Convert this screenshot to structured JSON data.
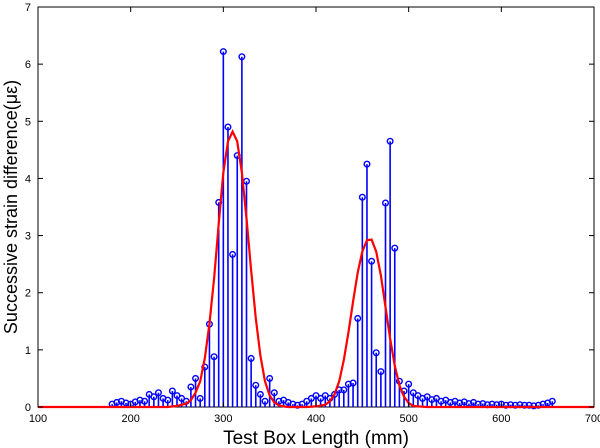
{
  "chart_data": {
    "type": "stem",
    "title": "",
    "xlabel": "Test Box Length (mm)",
    "ylabel": "Successive strain difference(με)",
    "xlim": [
      100,
      700
    ],
    "ylim": [
      0,
      7
    ],
    "xticks": [
      "100",
      "200",
      "300",
      "400",
      "500",
      "600",
      "700"
    ],
    "yticks": [
      "0",
      "1",
      "2",
      "3",
      "4",
      "5",
      "6",
      "7"
    ],
    "grid": false,
    "legend": "none",
    "series": [
      {
        "kind": "stem",
        "color": "#0000ff",
        "x": [
          180,
          185,
          190,
          195,
          200,
          205,
          210,
          215,
          220,
          225,
          230,
          235,
          240,
          245,
          250,
          255,
          260,
          265,
          270,
          275,
          280,
          285,
          290,
          295,
          300,
          305,
          310,
          315,
          320,
          325,
          330,
          335,
          340,
          345,
          350,
          355,
          360,
          365,
          370,
          375,
          380,
          385,
          390,
          395,
          400,
          405,
          410,
          415,
          420,
          425,
          430,
          435,
          440,
          445,
          450,
          455,
          460,
          465,
          470,
          475,
          480,
          485,
          490,
          495,
          500,
          505,
          510,
          515,
          520,
          525,
          530,
          535,
          540,
          545,
          550,
          555,
          560,
          565,
          570,
          575,
          580,
          585,
          590,
          595,
          600,
          605,
          610,
          615,
          620,
          625,
          630,
          635,
          640,
          645,
          650,
          655
        ],
        "y": [
          0.05,
          0.08,
          0.1,
          0.07,
          0.05,
          0.09,
          0.12,
          0.1,
          0.22,
          0.18,
          0.25,
          0.15,
          0.12,
          0.28,
          0.2,
          0.15,
          0.1,
          0.35,
          0.5,
          0.15,
          0.7,
          1.45,
          0.88,
          3.58,
          6.22,
          4.9,
          2.67,
          4.4,
          6.13,
          3.95,
          0.85,
          0.38,
          0.22,
          0.1,
          0.5,
          0.25,
          0.1,
          0.12,
          0.08,
          0.05,
          0.03,
          0.05,
          0.1,
          0.15,
          0.2,
          0.15,
          0.2,
          0.15,
          0.22,
          0.3,
          0.3,
          0.4,
          0.42,
          1.55,
          3.67,
          4.25,
          2.55,
          0.95,
          0.62,
          3.57,
          4.65,
          2.78,
          0.45,
          0.28,
          0.4,
          0.25,
          0.2,
          0.15,
          0.18,
          0.13,
          0.15,
          0.1,
          0.12,
          0.08,
          0.1,
          0.07,
          0.09,
          0.06,
          0.08,
          0.05,
          0.06,
          0.04,
          0.05,
          0.04,
          0.05,
          0.03,
          0.04,
          0.03,
          0.04,
          0.03,
          0.03,
          0.02,
          0.03,
          0.05,
          0.07,
          0.1
        ]
      },
      {
        "kind": "line",
        "color": "#ff0000",
        "x": [
          100,
          240,
          250,
          260,
          265,
          270,
          275,
          280,
          285,
          290,
          295,
          300,
          305,
          310,
          315,
          320,
          325,
          330,
          335,
          340,
          345,
          350,
          355,
          360,
          365,
          370,
          380,
          390,
          400,
          410,
          415,
          420,
          425,
          430,
          435,
          440,
          445,
          450,
          455,
          460,
          465,
          470,
          475,
          480,
          485,
          490,
          495,
          500,
          505,
          510,
          520,
          700
        ],
        "y": [
          0,
          0,
          0.02,
          0.06,
          0.12,
          0.25,
          0.45,
          0.85,
          1.45,
          2.25,
          3.2,
          4.1,
          4.65,
          4.82,
          4.65,
          4.1,
          3.3,
          2.4,
          1.55,
          0.9,
          0.45,
          0.2,
          0.08,
          0.03,
          0.01,
          0,
          0,
          0,
          0.01,
          0.04,
          0.1,
          0.22,
          0.45,
          0.82,
          1.3,
          1.85,
          2.35,
          2.72,
          2.92,
          2.93,
          2.72,
          2.3,
          1.75,
          1.2,
          0.72,
          0.38,
          0.18,
          0.07,
          0.02,
          0.01,
          0,
          0
        ]
      }
    ]
  }
}
